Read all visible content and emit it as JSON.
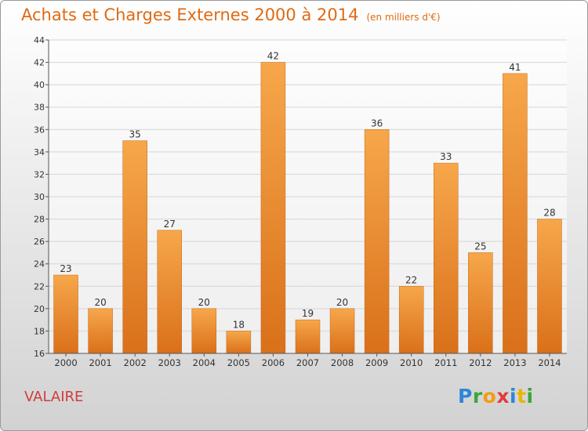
{
  "chart_data": {
    "type": "bar",
    "title": "Achats et Charges Externes 2000 à 2014",
    "subtitle": "(en milliers d'€)",
    "categories": [
      "2000",
      "2001",
      "2002",
      "2003",
      "2004",
      "2005",
      "2006",
      "2007",
      "2008",
      "2009",
      "2010",
      "2011",
      "2012",
      "2013",
      "2014"
    ],
    "values": [
      23,
      20,
      35,
      27,
      20,
      18,
      42,
      19,
      20,
      36,
      22,
      33,
      25,
      41,
      28
    ],
    "ylim": [
      16,
      44
    ],
    "yticks": [
      16,
      18,
      20,
      22,
      24,
      26,
      28,
      30,
      32,
      34,
      36,
      38,
      40,
      42,
      44
    ],
    "grid": true,
    "bar_color": "#f0922f",
    "xlabel": "",
    "ylabel": ""
  },
  "commune": "VALAIRE",
  "logo": {
    "parts": [
      "P",
      "r",
      "o",
      "x",
      "i",
      "t",
      "i"
    ]
  }
}
